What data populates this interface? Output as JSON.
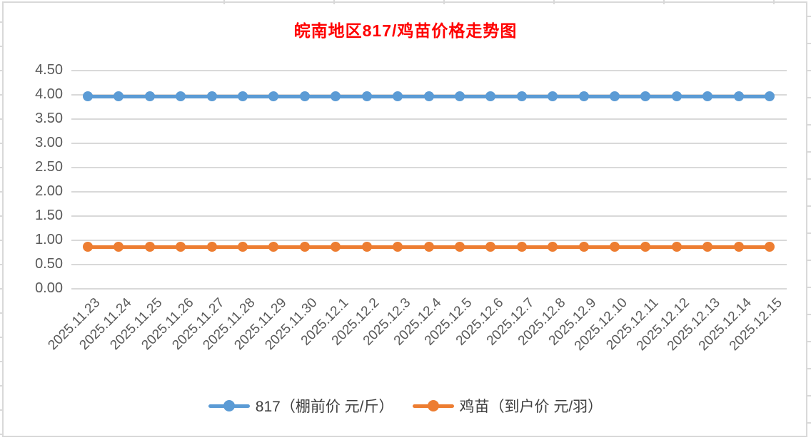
{
  "title": {
    "text": "皖南地区817/鸡苗价格走势图",
    "color": "#ff0000"
  },
  "chart_data": {
    "type": "line",
    "title": "皖南地区817/鸡苗价格走势图",
    "categories": [
      "2025.11.23",
      "2025.11.24",
      "2025.11.25",
      "2025.11.26",
      "2025.11.27",
      "2025.11.28",
      "2025.11.29",
      "2025.11.30",
      "2025.12.1",
      "2025.12.2",
      "2025.12.3",
      "2025.12.4",
      "2025.12.5",
      "2025.12.6",
      "2025.12.7",
      "2025.12.8",
      "2025.12.9",
      "2025.12.10",
      "2025.12.11",
      "2025.12.12",
      "2025.12.13",
      "2025.12.14",
      "2025.12.15"
    ],
    "series": [
      {
        "name": "817（棚前价 元/斤）",
        "color": "#5b9bd5",
        "values": [
          3.95,
          3.95,
          3.95,
          3.95,
          3.95,
          3.95,
          3.95,
          3.95,
          3.95,
          3.95,
          3.95,
          3.95,
          3.95,
          3.95,
          3.95,
          3.95,
          3.95,
          3.95,
          3.95,
          3.95,
          3.95,
          3.95,
          3.95
        ]
      },
      {
        "name": "鸡苗（到户价 元/羽）",
        "color": "#ed7d31",
        "values": [
          0.85,
          0.85,
          0.85,
          0.85,
          0.85,
          0.85,
          0.85,
          0.85,
          0.85,
          0.85,
          0.85,
          0.85,
          0.85,
          0.85,
          0.85,
          0.85,
          0.85,
          0.85,
          0.85,
          0.85,
          0.85,
          0.85,
          0.85
        ]
      }
    ],
    "xlabel": "",
    "ylabel": "",
    "ylim": [
      0,
      4.5
    ],
    "ytick_step": 0.5,
    "ytick_labels": [
      "4.50",
      "4.00",
      "3.50",
      "3.00",
      "2.50",
      "2.00",
      "1.50",
      "1.00",
      "0.50",
      "0.00"
    ],
    "grid": true,
    "gridline_color": "#d9d9d9",
    "axis_label_color": "#595959",
    "legend_position": "bottom"
  }
}
